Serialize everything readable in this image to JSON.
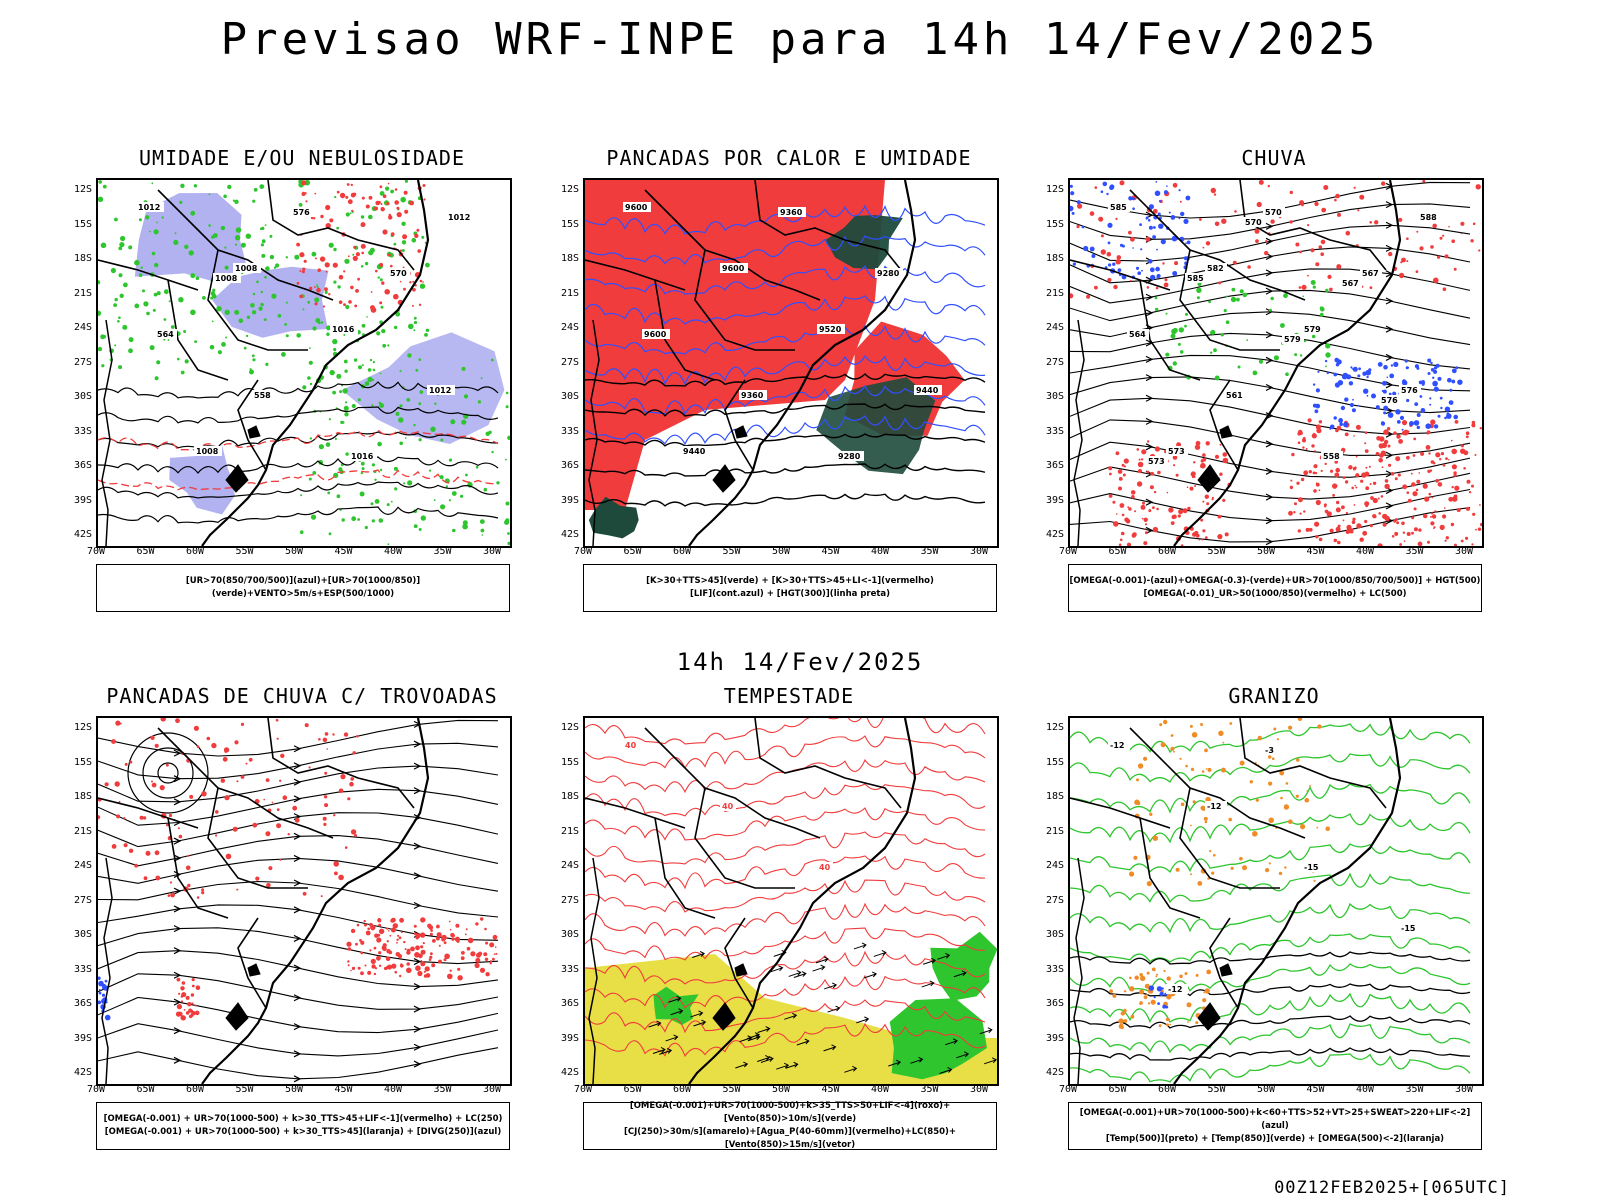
{
  "title": "Previsao WRF-INPE  para 14h 14/Fev/2025",
  "subtitle": "14h 14/Fev/2025",
  "stamp": "00Z12FEB2025+[065UTC]",
  "axes": {
    "lat": [
      "12S",
      "15S",
      "18S",
      "21S",
      "24S",
      "27S",
      "30S",
      "33S",
      "36S",
      "39S",
      "42S"
    ],
    "lon": [
      "70W",
      "65W",
      "60W",
      "55W",
      "50W",
      "45W",
      "40W",
      "35W",
      "30W"
    ]
  },
  "colors": {
    "red": "#f03c3c",
    "green": "#2ec52e",
    "blue": "#3050ff",
    "lavender": "#aaaaf0",
    "yellow": "#e6dc32",
    "darkgreen": "#1e4a3c",
    "orange": "#f08c28",
    "purple": "#9632c8"
  },
  "panels": [
    {
      "title": "UMIDADE E/OU NEBULOSIDADE",
      "legend": [
        "[UR>70(850/700/500)](azul)+[UR>70(1000/850)](verde)+VENTO>5m/s+ESP(500/1000)"
      ]
    },
    {
      "title": "PANCADAS POR CALOR E UMIDADE",
      "legend": [
        "[K>30+TTS>45](verde)  +  [K>30+TTS>45+LI<-1](vermelho)",
        "[LIF](cont.azul)  +  [HGT(300)](linha preta)"
      ]
    },
    {
      "title": "CHUVA",
      "legend": [
        "[OMEGA(-0.001)-(azul)+OMEGA(-0.3)-(verde)+UR>70(1000/850/700/500)]  +  HGT(500)",
        "[OMEGA(-0.01)_UR>50(1000/850)(vermelho)  +  LC(500)"
      ]
    },
    {
      "title": "PANCADAS DE CHUVA C/ TROVOADAS",
      "legend": [
        "[OMEGA(-0.001)  +  UR>70(1000-500)  +  k>30_TTS>45+LIF<-1](vermelho)  +  LC(250)",
        "[OMEGA(-0.001)  +  UR>70(1000-500)  +  k>30_TTS>45](laranja)  +  [DIVG(250)](azul)"
      ]
    },
    {
      "title": "TEMPESTADE",
      "legend": [
        "[OMEGA(-0.001)+UR>70(1000-500)+k>35_TTS>50+LIF<-4](roxo)+[Vento(850)>10m/s](verde)",
        "[CJ(250)>30m/s](amarelo)+[Agua_P(40-60mm)](vermelho)+LC(850)+[Vento(850)>15m/s](vetor)"
      ]
    },
    {
      "title": "GRANIZO",
      "legend": [
        "[OMEGA(-0.001)+UR>70(1000-500)+k<60+TTS>52+VT>25+SWEAT>220+LIF<-2](azul)",
        "[Temp(500)](preto)  +  [Temp(850)](verde)  +  [OMEGA(500)<-2](laranja)"
      ]
    }
  ],
  "contour_labels": {
    "p1": [
      "1012",
      "1008",
      "1016",
      "1012",
      "1008",
      "576",
      "570",
      "564",
      "558",
      "1016",
      "1012",
      "1008"
    ],
    "p2": [
      "9600",
      "9600",
      "9520",
      "9440",
      "9440",
      "9360",
      "9280",
      "9600",
      "9360",
      "9280"
    ],
    "p3": [
      "585",
      "582",
      "579",
      "576",
      "573",
      "570",
      "567",
      "564",
      "561",
      "558",
      "588",
      "585",
      "579",
      "576",
      "573",
      "570",
      "567"
    ],
    "p5": [
      "40",
      "40",
      "40"
    ],
    "p6": [
      "-12",
      "-12",
      "-15",
      "-15",
      "-12",
      "-3"
    ]
  }
}
